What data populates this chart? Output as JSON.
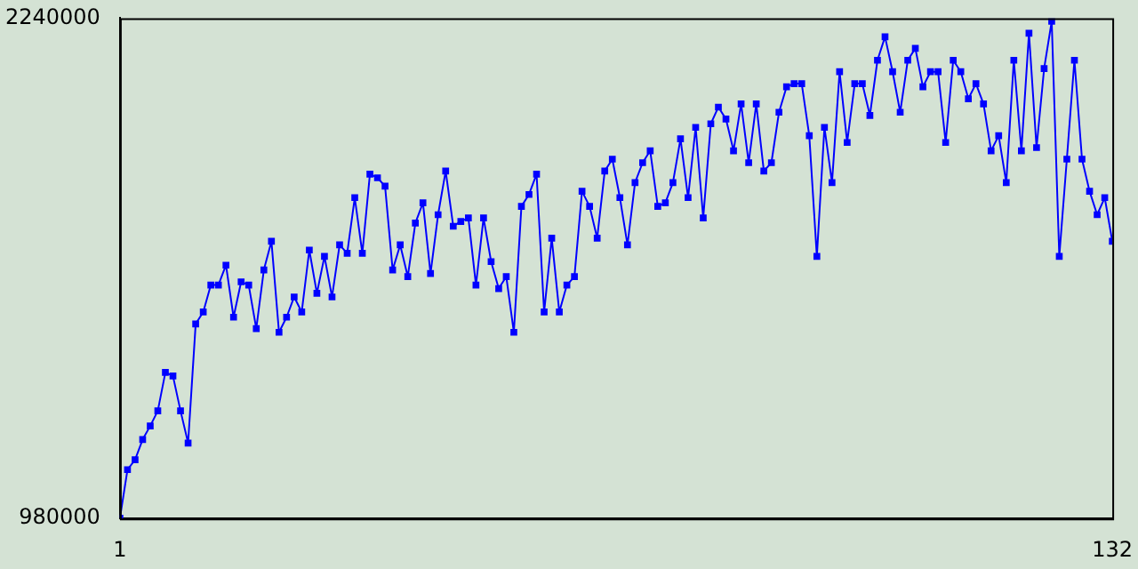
{
  "chart_data": {
    "type": "line",
    "x": [
      1,
      2,
      3,
      4,
      5,
      6,
      7,
      8,
      9,
      10,
      11,
      12,
      13,
      14,
      15,
      16,
      17,
      18,
      19,
      20,
      21,
      22,
      23,
      24,
      25,
      26,
      27,
      28,
      29,
      30,
      31,
      32,
      33,
      34,
      35,
      36,
      37,
      38,
      39,
      40,
      41,
      42,
      43,
      44,
      45,
      46,
      47,
      48,
      49,
      50,
      51,
      52,
      53,
      54,
      55,
      56,
      57,
      58,
      59,
      60,
      61,
      62,
      63,
      64,
      65,
      66,
      67,
      68,
      69,
      70,
      71,
      72,
      73,
      74,
      75,
      76,
      77,
      78,
      79,
      80,
      81,
      82,
      83,
      84,
      85,
      86,
      87,
      88,
      89,
      90,
      91,
      92,
      93,
      94,
      95,
      96,
      97,
      98,
      99,
      100,
      101,
      102,
      103,
      104,
      105,
      106,
      107,
      108,
      109,
      110,
      111,
      112,
      113,
      114,
      115,
      116,
      117,
      118,
      119,
      120,
      121,
      122,
      123,
      124,
      125,
      126,
      127,
      128,
      129,
      130,
      131,
      132
    ],
    "series": [
      {
        "color": "#0000ff",
        "values": [
          981000,
          1103000,
          1128000,
          1179000,
          1213000,
          1251000,
          1348000,
          1339000,
          1251000,
          1170000,
          1470000,
          1500000,
          1568000,
          1568000,
          1618000,
          1487000,
          1576000,
          1568000,
          1458000,
          1606000,
          1678000,
          1449000,
          1487000,
          1538000,
          1500000,
          1656000,
          1547000,
          1640000,
          1538000,
          1669000,
          1648000,
          1788000,
          1648000,
          1847000,
          1838000,
          1817000,
          1606000,
          1669000,
          1589000,
          1724000,
          1775000,
          1597000,
          1745000,
          1855000,
          1716000,
          1728000,
          1737000,
          1568000,
          1737000,
          1627000,
          1559000,
          1589000,
          1449000,
          1766000,
          1796000,
          1847000,
          1500000,
          1686000,
          1500000,
          1568000,
          1589000,
          1804000,
          1766000,
          1686000,
          1855000,
          1885000,
          1788000,
          1669000,
          1826000,
          1876000,
          1906000,
          1766000,
          1775000,
          1826000,
          1936000,
          1788000,
          1965000,
          1737000,
          1974000,
          2016000,
          1986000,
          1906000,
          2024000,
          1876000,
          2024000,
          1855000,
          1876000,
          2003000,
          2067000,
          2075000,
          2075000,
          1944000,
          1640000,
          1965000,
          1826000,
          2105000,
          1927000,
          2075000,
          2075000,
          1995000,
          2134000,
          2193000,
          2105000,
          2003000,
          2134000,
          2164000,
          2067000,
          2105000,
          2105000,
          1927000,
          2134000,
          2105000,
          2037000,
          2075000,
          2024000,
          1906000,
          1944000,
          1826000,
          2134000,
          1906000,
          2202000,
          1914000,
          2113000,
          2232000,
          1640000,
          1885000,
          2134000,
          1885000,
          1804000,
          1745000,
          1788000,
          1678000
        ]
      }
    ],
    "xlim": [
      1,
      132
    ],
    "xticks": [
      1,
      132
    ],
    "ylim": [
      980000,
      2240000
    ],
    "yticks": [
      980000,
      2240000
    ],
    "grid": false,
    "legend": false,
    "marker": "square",
    "line_style": "solid"
  }
}
